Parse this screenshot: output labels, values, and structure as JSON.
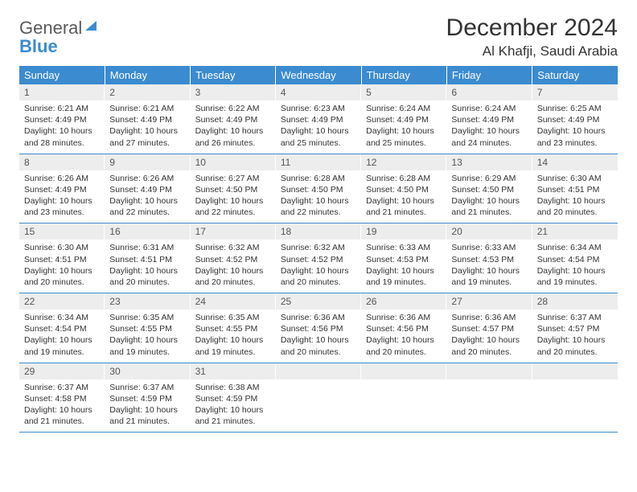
{
  "logo": {
    "text_gray": "General",
    "text_blue": "Blue"
  },
  "title": "December 2024",
  "location": "Al Khafji, Saudi Arabia",
  "colors": {
    "header_bg": "#3b8bd0",
    "header_text": "#ffffff",
    "daynum_bg": "#ededed",
    "border": "#3b8bd0",
    "text": "#333333"
  },
  "weekdays": [
    "Sunday",
    "Monday",
    "Tuesday",
    "Wednesday",
    "Thursday",
    "Friday",
    "Saturday"
  ],
  "days": [
    {
      "n": "1",
      "sr": "6:21 AM",
      "ss": "4:49 PM",
      "dl": "10 hours and 28 minutes."
    },
    {
      "n": "2",
      "sr": "6:21 AM",
      "ss": "4:49 PM",
      "dl": "10 hours and 27 minutes."
    },
    {
      "n": "3",
      "sr": "6:22 AM",
      "ss": "4:49 PM",
      "dl": "10 hours and 26 minutes."
    },
    {
      "n": "4",
      "sr": "6:23 AM",
      "ss": "4:49 PM",
      "dl": "10 hours and 25 minutes."
    },
    {
      "n": "5",
      "sr": "6:24 AM",
      "ss": "4:49 PM",
      "dl": "10 hours and 25 minutes."
    },
    {
      "n": "6",
      "sr": "6:24 AM",
      "ss": "4:49 PM",
      "dl": "10 hours and 24 minutes."
    },
    {
      "n": "7",
      "sr": "6:25 AM",
      "ss": "4:49 PM",
      "dl": "10 hours and 23 minutes."
    },
    {
      "n": "8",
      "sr": "6:26 AM",
      "ss": "4:49 PM",
      "dl": "10 hours and 23 minutes."
    },
    {
      "n": "9",
      "sr": "6:26 AM",
      "ss": "4:49 PM",
      "dl": "10 hours and 22 minutes."
    },
    {
      "n": "10",
      "sr": "6:27 AM",
      "ss": "4:50 PM",
      "dl": "10 hours and 22 minutes."
    },
    {
      "n": "11",
      "sr": "6:28 AM",
      "ss": "4:50 PM",
      "dl": "10 hours and 22 minutes."
    },
    {
      "n": "12",
      "sr": "6:28 AM",
      "ss": "4:50 PM",
      "dl": "10 hours and 21 minutes."
    },
    {
      "n": "13",
      "sr": "6:29 AM",
      "ss": "4:50 PM",
      "dl": "10 hours and 21 minutes."
    },
    {
      "n": "14",
      "sr": "6:30 AM",
      "ss": "4:51 PM",
      "dl": "10 hours and 20 minutes."
    },
    {
      "n": "15",
      "sr": "6:30 AM",
      "ss": "4:51 PM",
      "dl": "10 hours and 20 minutes."
    },
    {
      "n": "16",
      "sr": "6:31 AM",
      "ss": "4:51 PM",
      "dl": "10 hours and 20 minutes."
    },
    {
      "n": "17",
      "sr": "6:32 AM",
      "ss": "4:52 PM",
      "dl": "10 hours and 20 minutes."
    },
    {
      "n": "18",
      "sr": "6:32 AM",
      "ss": "4:52 PM",
      "dl": "10 hours and 20 minutes."
    },
    {
      "n": "19",
      "sr": "6:33 AM",
      "ss": "4:53 PM",
      "dl": "10 hours and 19 minutes."
    },
    {
      "n": "20",
      "sr": "6:33 AM",
      "ss": "4:53 PM",
      "dl": "10 hours and 19 minutes."
    },
    {
      "n": "21",
      "sr": "6:34 AM",
      "ss": "4:54 PM",
      "dl": "10 hours and 19 minutes."
    },
    {
      "n": "22",
      "sr": "6:34 AM",
      "ss": "4:54 PM",
      "dl": "10 hours and 19 minutes."
    },
    {
      "n": "23",
      "sr": "6:35 AM",
      "ss": "4:55 PM",
      "dl": "10 hours and 19 minutes."
    },
    {
      "n": "24",
      "sr": "6:35 AM",
      "ss": "4:55 PM",
      "dl": "10 hours and 19 minutes."
    },
    {
      "n": "25",
      "sr": "6:36 AM",
      "ss": "4:56 PM",
      "dl": "10 hours and 20 minutes."
    },
    {
      "n": "26",
      "sr": "6:36 AM",
      "ss": "4:56 PM",
      "dl": "10 hours and 20 minutes."
    },
    {
      "n": "27",
      "sr": "6:36 AM",
      "ss": "4:57 PM",
      "dl": "10 hours and 20 minutes."
    },
    {
      "n": "28",
      "sr": "6:37 AM",
      "ss": "4:57 PM",
      "dl": "10 hours and 20 minutes."
    },
    {
      "n": "29",
      "sr": "6:37 AM",
      "ss": "4:58 PM",
      "dl": "10 hours and 21 minutes."
    },
    {
      "n": "30",
      "sr": "6:37 AM",
      "ss": "4:59 PM",
      "dl": "10 hours and 21 minutes."
    },
    {
      "n": "31",
      "sr": "6:38 AM",
      "ss": "4:59 PM",
      "dl": "10 hours and 21 minutes."
    }
  ],
  "labels": {
    "sunrise": "Sunrise:",
    "sunset": "Sunset:",
    "daylight": "Daylight:"
  }
}
